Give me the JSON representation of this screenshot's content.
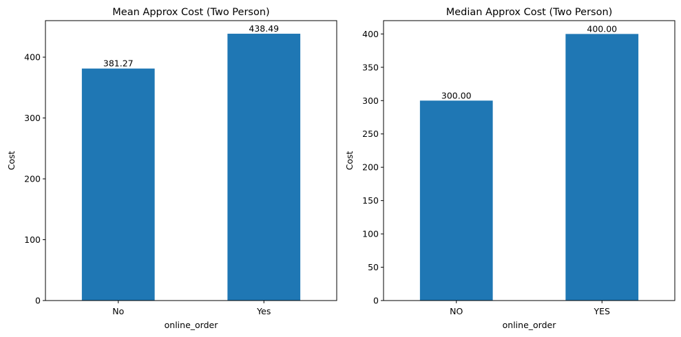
{
  "chart_data": [
    {
      "type": "bar",
      "title": "Mean Approx Cost (Two Person)",
      "xlabel": "online_order",
      "ylabel": "Cost",
      "categories": [
        "No",
        "Yes"
      ],
      "values": [
        381.27,
        438.49
      ],
      "value_labels": [
        "381.27",
        "438.49"
      ],
      "ylim": [
        0,
        460
      ],
      "yticks": [
        0,
        100,
        200,
        300,
        400
      ],
      "ytick_labels": [
        "0",
        "100",
        "200",
        "300",
        "400"
      ],
      "grid": false,
      "bar_color": "#1f77b4"
    },
    {
      "type": "bar",
      "title": "Median Approx Cost (Two Person)",
      "xlabel": "online_order",
      "ylabel": "Cost",
      "categories": [
        "NO",
        "YES"
      ],
      "values": [
        300.0,
        400.0
      ],
      "value_labels": [
        "300.00",
        "400.00"
      ],
      "ylim": [
        0,
        420
      ],
      "yticks": [
        0,
        50,
        100,
        150,
        200,
        250,
        300,
        350,
        400
      ],
      "ytick_labels": [
        "0",
        "50",
        "100",
        "150",
        "200",
        "250",
        "300",
        "350",
        "400"
      ],
      "grid": false,
      "bar_color": "#1f77b4"
    }
  ]
}
